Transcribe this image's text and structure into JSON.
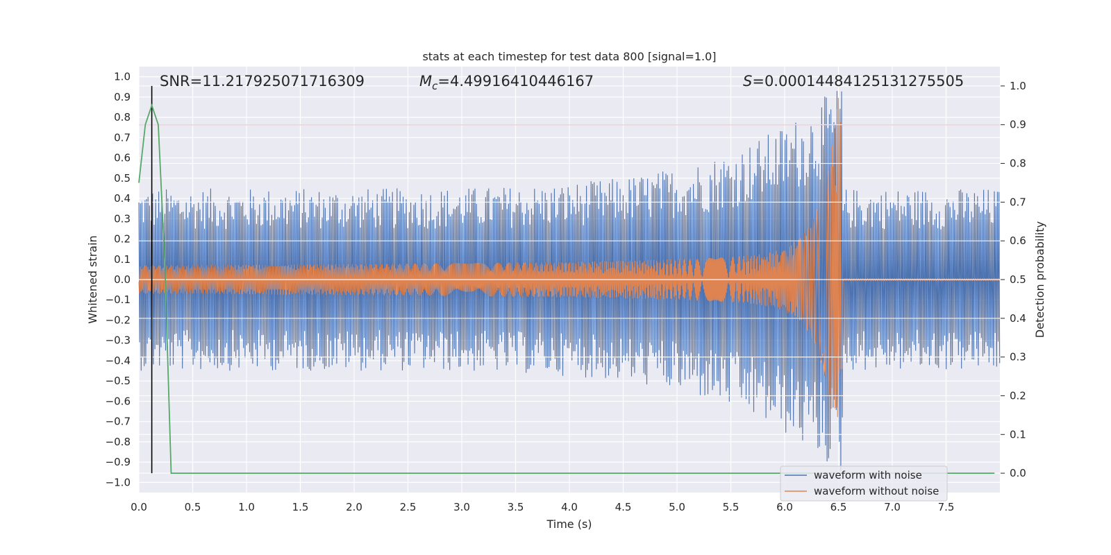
{
  "chart_data": {
    "type": "line",
    "title": "stats at each timestep for test data 800 [signal=1.0]",
    "xlabel": "Time (s)",
    "ylabel": "Whitened strain",
    "y2label": "Detection probability",
    "xlim": [
      0.0,
      8.0
    ],
    "ylim": [
      -1.05,
      1.05
    ],
    "y2lim": [
      -0.05,
      1.05
    ],
    "x_ticks": [
      "0.0",
      "0.5",
      "1.0",
      "1.5",
      "2.0",
      "2.5",
      "3.0",
      "3.5",
      "4.0",
      "4.5",
      "5.0",
      "5.5",
      "6.0",
      "6.5",
      "7.0",
      "7.5"
    ],
    "y_ticks": [
      "1.0",
      "0.9",
      "0.8",
      "0.7",
      "0.6",
      "0.5",
      "0.4",
      "0.3",
      "0.2",
      "0.1",
      "0.0",
      "−0.1",
      "−0.2",
      "−0.3",
      "−0.4",
      "−0.5",
      "−0.6",
      "−0.7",
      "−0.8",
      "−0.9",
      "−1.0"
    ],
    "y2_ticks": [
      "1.0",
      "0.9",
      "0.8",
      "0.7",
      "0.6",
      "0.5",
      "0.4",
      "0.3",
      "0.2",
      "0.1",
      "0.0"
    ],
    "annotations": {
      "snr": "SNR=11.217925071716309",
      "mc_symbol": "M",
      "mc_sub": "c",
      "mc_value": "=4.49916410446167",
      "s_symbol": "S",
      "s_value": "=0.00014484125131275505"
    },
    "threshold": {
      "y2": 0.9,
      "color": "#c44e52"
    },
    "marker_time": 0.12,
    "merger_time": 6.54,
    "series": [
      {
        "name": "waveform with noise",
        "color": "#4c72b0",
        "envelope": {
          "base_amplitude": 0.45,
          "max_amplitude": 0.98,
          "post_merger_amplitude": 0.45
        }
      },
      {
        "name": "waveform without noise",
        "color": "#dd8452",
        "envelope": {
          "start_amplitude": 0.07,
          "peak_amplitude": 0.92,
          "post_merger_amplitude": 0.005
        }
      },
      {
        "name": "detection probability",
        "color": "#55a868",
        "axis": "right",
        "x": [
          0.0,
          0.06,
          0.12,
          0.18,
          0.24,
          0.3,
          0.36,
          0.4,
          7.95
        ],
        "y": [
          0.75,
          0.9,
          0.95,
          0.9,
          0.55,
          0.0,
          0.0,
          0.0,
          0.0
        ]
      }
    ]
  }
}
